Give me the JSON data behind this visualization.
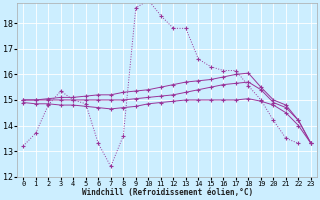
{
  "xlabel": "Windchill (Refroidissement éolien,°C)",
  "bg_color": "#cceeff",
  "grid_color": "#ffffff",
  "line_color": "#993399",
  "xlim": [
    -0.5,
    23.5
  ],
  "ylim": [
    12,
    18.8
  ],
  "yticks": [
    12,
    13,
    14,
    15,
    16,
    17,
    18
  ],
  "xticks": [
    0,
    1,
    2,
    3,
    4,
    5,
    6,
    7,
    8,
    9,
    10,
    11,
    12,
    13,
    14,
    15,
    16,
    17,
    18,
    19,
    20,
    21,
    22,
    23
  ],
  "series": {
    "curve1_x": [
      0,
      1,
      2,
      3,
      4,
      5,
      6,
      7,
      8,
      9,
      10,
      11,
      12,
      13,
      14,
      15,
      16,
      17,
      18,
      19,
      20,
      21,
      22
    ],
    "curve1_y": [
      13.2,
      13.7,
      14.8,
      15.35,
      15.0,
      14.85,
      13.3,
      12.4,
      13.6,
      18.6,
      18.9,
      18.3,
      17.8,
      17.8,
      16.6,
      16.3,
      16.15,
      16.15,
      15.55,
      15.0,
      14.2,
      13.5,
      13.3
    ],
    "line2_x": [
      0,
      1,
      2,
      3,
      4,
      5,
      6,
      7,
      8,
      9,
      10,
      11,
      12,
      13,
      14,
      15,
      16,
      17,
      18,
      19,
      20,
      21,
      22,
      23
    ],
    "line2_y": [
      15.0,
      15.0,
      15.05,
      15.1,
      15.1,
      15.15,
      15.2,
      15.2,
      15.3,
      15.35,
      15.4,
      15.5,
      15.6,
      15.7,
      15.75,
      15.8,
      15.9,
      16.0,
      16.05,
      15.5,
      15.0,
      14.8,
      14.2,
      13.3
    ],
    "line3_x": [
      0,
      1,
      2,
      3,
      4,
      5,
      6,
      7,
      8,
      9,
      10,
      11,
      12,
      13,
      14,
      15,
      16,
      17,
      18,
      19,
      20,
      21,
      22,
      23
    ],
    "line3_y": [
      15.0,
      15.0,
      15.0,
      15.0,
      15.0,
      15.0,
      15.0,
      15.0,
      15.0,
      15.05,
      15.1,
      15.15,
      15.2,
      15.3,
      15.4,
      15.5,
      15.6,
      15.65,
      15.7,
      15.4,
      14.9,
      14.7,
      14.2,
      13.3
    ],
    "line4_x": [
      0,
      1,
      2,
      3,
      4,
      5,
      6,
      7,
      8,
      9,
      10,
      11,
      12,
      13,
      14,
      15,
      16,
      17,
      18,
      19,
      20,
      21,
      22,
      23
    ],
    "line4_y": [
      14.9,
      14.85,
      14.85,
      14.8,
      14.8,
      14.75,
      14.7,
      14.65,
      14.7,
      14.75,
      14.85,
      14.9,
      14.95,
      15.0,
      15.0,
      15.0,
      15.0,
      15.0,
      15.05,
      14.95,
      14.8,
      14.5,
      14.0,
      13.3
    ]
  }
}
